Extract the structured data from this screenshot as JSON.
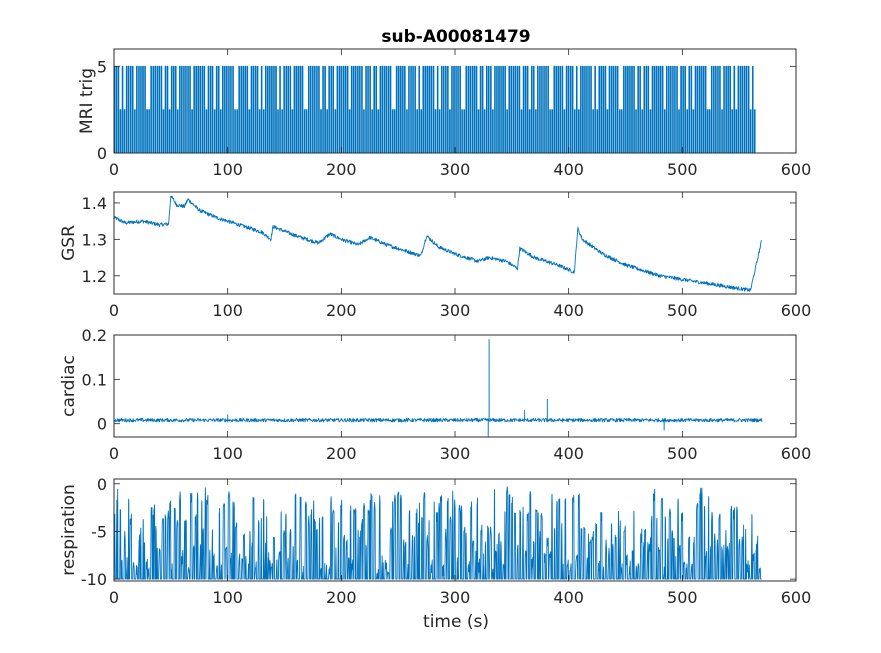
{
  "chart_data": {
    "title": "sub-A00081479",
    "xlabel": "time (s)",
    "color": "#0072BD",
    "panels": [
      {
        "name": "mri-trig",
        "type": "line",
        "ylabel": "MRI trig",
        "xlim": [
          0,
          600
        ],
        "ylim": [
          0,
          6
        ],
        "xticks": [
          0,
          100,
          200,
          300,
          400,
          500,
          600
        ],
        "yticks": [
          0,
          5
        ],
        "tick_labels_x": [
          "0",
          "100",
          "200",
          "300",
          "400",
          "500",
          "600"
        ],
        "tick_labels_y": [
          "0",
          "5"
        ],
        "signal": {
          "kind": "pulse_train",
          "t_start": 0,
          "t_end": 565,
          "high": 5,
          "low": 0,
          "secondary_high": 2.5,
          "period_s": 1.8
        }
      },
      {
        "name": "gsr",
        "type": "line",
        "ylabel": "GSR",
        "xlim": [
          0,
          600
        ],
        "ylim": [
          1.15,
          1.43
        ],
        "xticks": [
          0,
          100,
          200,
          300,
          400,
          500,
          600
        ],
        "yticks": [
          1.2,
          1.3,
          1.4
        ],
        "tick_labels_x": [
          "0",
          "100",
          "200",
          "300",
          "400",
          "500",
          "600"
        ],
        "tick_labels_y": [
          "1.2",
          "1.3",
          "1.4"
        ],
        "signal": {
          "kind": "trend",
          "x": [
            0,
            10,
            25,
            40,
            48,
            50,
            55,
            62,
            65,
            75,
            90,
            110,
            130,
            138,
            140,
            160,
            180,
            190,
            200,
            215,
            225,
            240,
            260,
            270,
            275,
            285,
            300,
            320,
            330,
            345,
            355,
            357,
            370,
            390,
            405,
            408,
            412,
            430,
            450,
            480,
            510,
            540,
            560,
            565,
            570
          ],
          "y": [
            1.36,
            1.345,
            1.35,
            1.34,
            1.342,
            1.42,
            1.395,
            1.39,
            1.41,
            1.38,
            1.36,
            1.34,
            1.32,
            1.3,
            1.335,
            1.31,
            1.29,
            1.315,
            1.3,
            1.285,
            1.305,
            1.285,
            1.265,
            1.255,
            1.31,
            1.28,
            1.26,
            1.24,
            1.25,
            1.24,
            1.22,
            1.275,
            1.25,
            1.23,
            1.21,
            1.33,
            1.3,
            1.26,
            1.23,
            1.2,
            1.185,
            1.17,
            1.16,
            1.23,
            1.3
          ],
          "noise": 0.005
        }
      },
      {
        "name": "cardiac",
        "type": "line",
        "ylabel": "cardiac",
        "xlim": [
          0,
          600
        ],
        "ylim": [
          -0.03,
          0.2
        ],
        "xticks": [
          0,
          100,
          200,
          300,
          400,
          500,
          600
        ],
        "yticks": [
          0,
          0.1,
          0.2
        ],
        "tick_labels_x": [
          "0",
          "100",
          "200",
          "300",
          "400",
          "500",
          "600"
        ],
        "tick_labels_y": [
          "0",
          "0.1",
          "0.2"
        ],
        "signal": {
          "kind": "baseline_spikes",
          "t_end": 570,
          "baseline": 0.008,
          "noise": 0.004,
          "spikes": [
            {
              "t": 330,
              "y": 0.19
            },
            {
              "t": 329,
              "y": -0.03
            },
            {
              "t": 361,
              "y": 0.03
            },
            {
              "t": 381,
              "y": 0.055
            },
            {
              "t": 100,
              "y": 0.02
            },
            {
              "t": 484,
              "y": -0.015
            }
          ]
        }
      },
      {
        "name": "respiration",
        "type": "line",
        "ylabel": "respiration",
        "xlim": [
          0,
          600
        ],
        "ylim": [
          -10.2,
          0.5
        ],
        "xticks": [
          0,
          100,
          200,
          300,
          400,
          500,
          600
        ],
        "yticks": [
          -10,
          -5,
          0
        ],
        "tick_labels_x": [
          "0",
          "100",
          "200",
          "300",
          "400",
          "500",
          "600"
        ],
        "tick_labels_y": [
          "-10",
          "-5",
          "0"
        ],
        "signal": {
          "kind": "oscillation",
          "t_end": 570,
          "floor": -10,
          "period_s": 3.2
        }
      }
    ]
  }
}
